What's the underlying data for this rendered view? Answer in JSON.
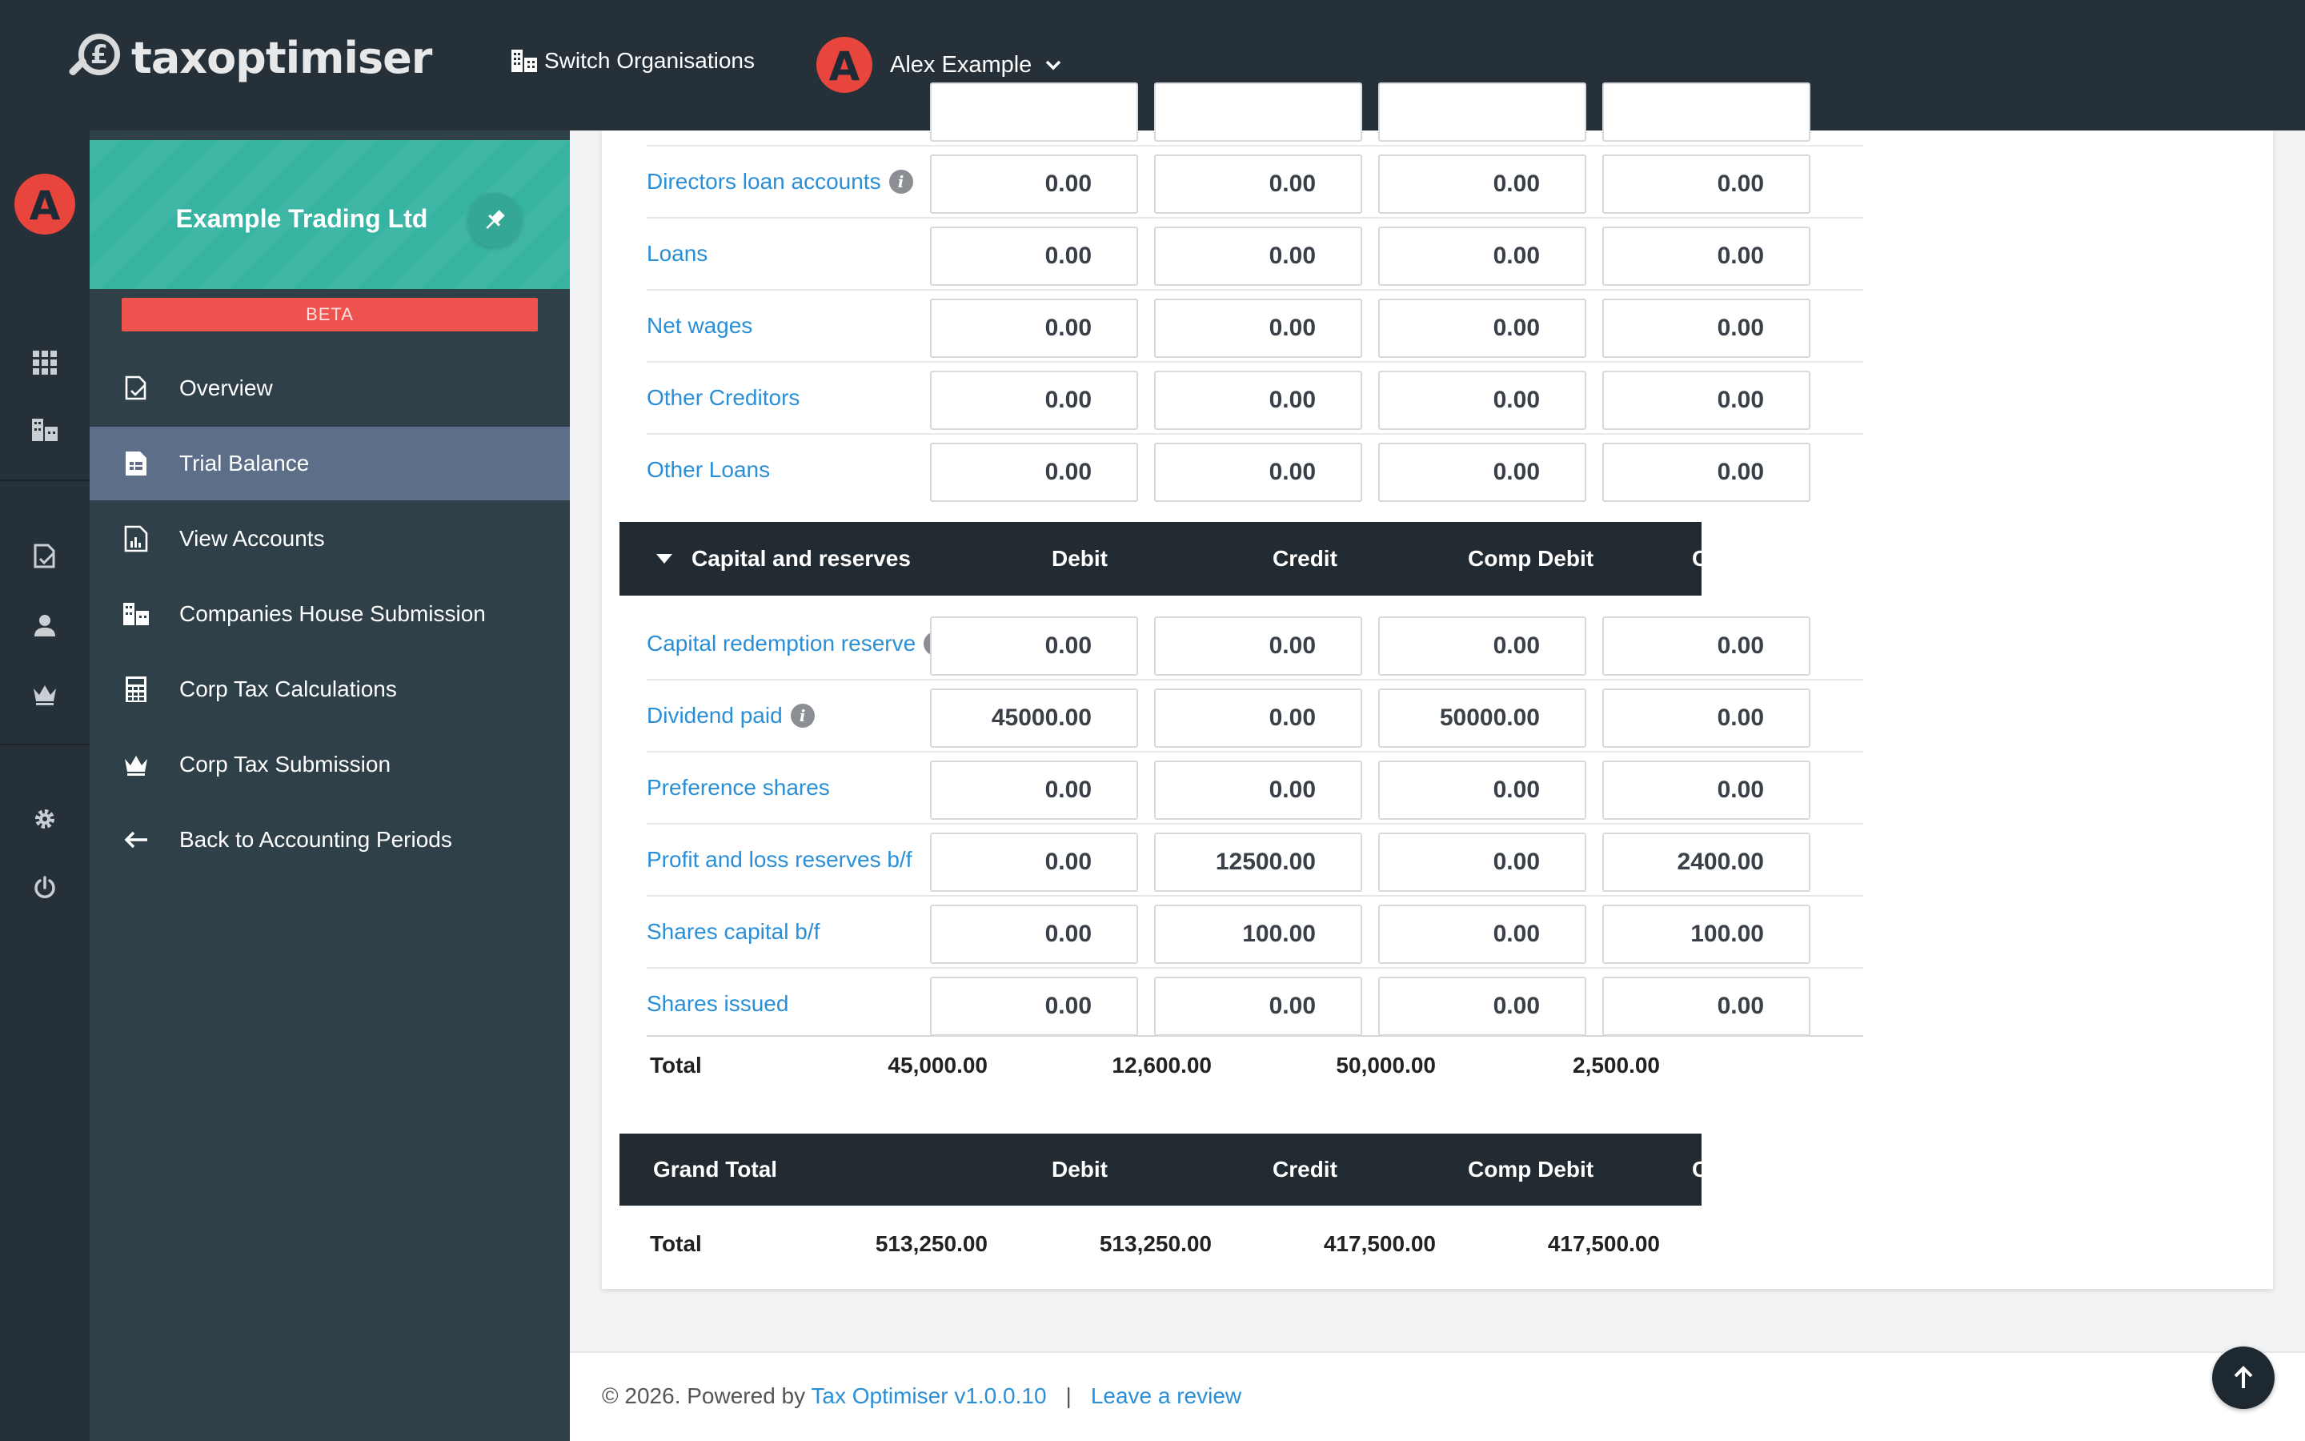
{
  "app": {
    "logo_text": "taxoptimiser",
    "logo_symbol": "£"
  },
  "topbar": {
    "switch_org_label": "Switch Organisations",
    "user_name": "Alex Example",
    "user_initial": "A"
  },
  "sidebar": {
    "org_name": "Example Trading Ltd",
    "beta_label": "BETA",
    "items": [
      {
        "label": "Overview",
        "icon": "overview-icon"
      },
      {
        "label": "Trial Balance",
        "icon": "trial-balance-icon",
        "active": true
      },
      {
        "label": "View Accounts",
        "icon": "view-accounts-icon"
      },
      {
        "label": "Companies House Submission",
        "icon": "companies-house-icon"
      },
      {
        "label": "Corp Tax Calculations",
        "icon": "calculator-icon"
      },
      {
        "label": "Corp Tax Submission",
        "icon": "crown-icon"
      },
      {
        "label": "Back to Accounting Periods",
        "icon": "back-arrow-icon"
      }
    ]
  },
  "liabilities_rows": [
    {
      "label": "Directors loan accounts",
      "info": true,
      "values": [
        "0.00",
        "0.00",
        "0.00",
        "0.00"
      ]
    },
    {
      "label": "Loans",
      "info": false,
      "values": [
        "0.00",
        "0.00",
        "0.00",
        "0.00"
      ]
    },
    {
      "label": "Net wages",
      "info": false,
      "values": [
        "0.00",
        "0.00",
        "0.00",
        "0.00"
      ]
    },
    {
      "label": "Other Creditors",
      "info": false,
      "values": [
        "0.00",
        "0.00",
        "0.00",
        "0.00"
      ]
    },
    {
      "label": "Other Loans",
      "info": false,
      "values": [
        "0.00",
        "0.00",
        "0.00",
        "0.00"
      ]
    }
  ],
  "capital_section": {
    "title": "Capital and reserves",
    "columns": [
      "Debit",
      "Credit",
      "Comp Debit",
      "C"
    ],
    "rows": [
      {
        "label": "Capital redemption reserve",
        "info": true,
        "values": [
          "0.00",
          "0.00",
          "0.00",
          "0.00"
        ]
      },
      {
        "label": "Dividend paid",
        "info": true,
        "values": [
          "45000.00",
          "0.00",
          "50000.00",
          "0.00"
        ]
      },
      {
        "label": "Preference shares",
        "info": false,
        "values": [
          "0.00",
          "0.00",
          "0.00",
          "0.00"
        ]
      },
      {
        "label": "Profit and loss reserves b/f",
        "info": false,
        "values": [
          "0.00",
          "12500.00",
          "0.00",
          "2400.00"
        ]
      },
      {
        "label": "Shares capital b/f",
        "info": false,
        "values": [
          "0.00",
          "100.00",
          "0.00",
          "100.00"
        ]
      },
      {
        "label": "Shares issued",
        "info": false,
        "values": [
          "0.00",
          "0.00",
          "0.00",
          "0.00"
        ]
      }
    ],
    "total": {
      "label": "Total",
      "values": [
        "45,000.00",
        "12,600.00",
        "50,000.00",
        "2,500.00"
      ]
    }
  },
  "grand_total": {
    "title": "Grand Total",
    "columns": [
      "Debit",
      "Credit",
      "Comp Debit",
      "C"
    ],
    "total": {
      "label": "Total",
      "values": [
        "513,250.00",
        "513,250.00",
        "417,500.00",
        "417,500.00"
      ]
    }
  },
  "footer": {
    "copyright": "© 2026. Powered by ",
    "version_link": "Tax Optimiser v1.0.0.10",
    "separator": "|",
    "review_link": "Leave a review"
  },
  "colors": {
    "topbar": "#263038",
    "sidenav": "#304049",
    "org_card": "#36b3a1",
    "beta": "#ee5350",
    "active_nav": "#5d6f88",
    "link": "#2a8fd6",
    "section_header": "#222a32"
  }
}
